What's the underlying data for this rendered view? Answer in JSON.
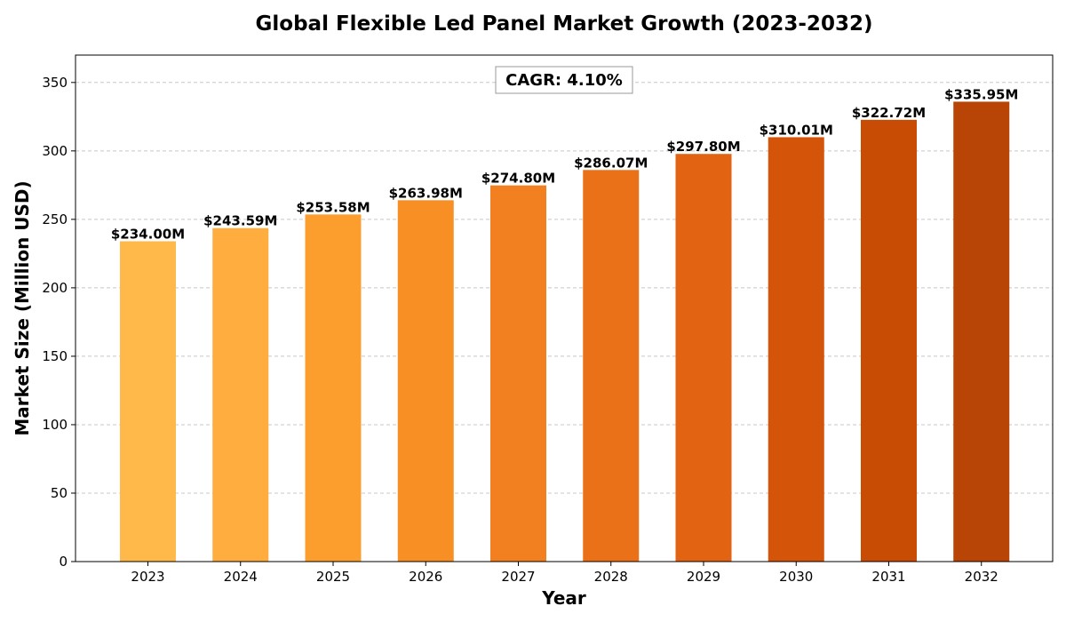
{
  "chart_data": {
    "type": "bar",
    "title": "Global Flexible Led Panel Market Growth (2023-2032)",
    "xlabel": "Year",
    "ylabel": "Market Size (Million USD)",
    "categories": [
      "2023",
      "2024",
      "2025",
      "2026",
      "2027",
      "2028",
      "2029",
      "2030",
      "2031",
      "2032"
    ],
    "values": [
      234.0,
      243.59,
      253.58,
      263.98,
      274.8,
      286.07,
      297.8,
      310.01,
      322.72,
      335.95
    ],
    "data_labels": [
      "$234.00M",
      "$243.59M",
      "$253.58M",
      "$263.98M",
      "$274.80M",
      "$286.07M",
      "$297.80M",
      "$310.01M",
      "$322.72M",
      "$335.95M"
    ],
    "bar_colors": [
      "#FFB94A",
      "#FEAD3E",
      "#FC9E2E",
      "#F78F24",
      "#F28020",
      "#EB7118",
      "#E26312",
      "#D4540A",
      "#C94C04",
      "#B84405"
    ],
    "ylim": [
      0,
      370
    ],
    "yticks": [
      0,
      50,
      100,
      150,
      200,
      250,
      300,
      350
    ],
    "grid": true,
    "annotation": "CAGR: 4.10%"
  }
}
